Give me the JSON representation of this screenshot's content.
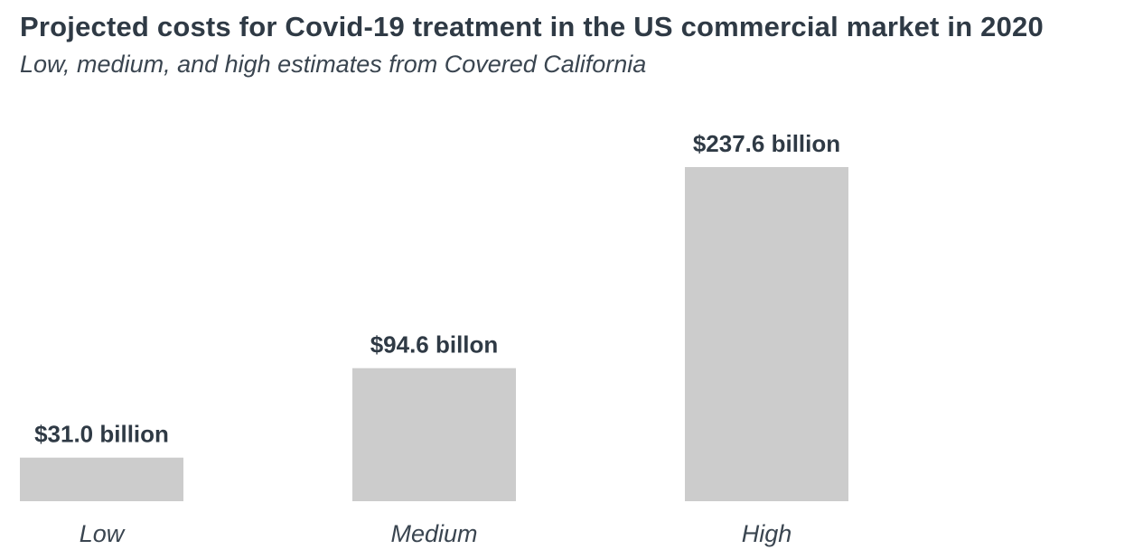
{
  "title": "Projected costs for Covid-19 treatment in the US commercial market in 2020",
  "subtitle": "Low, medium, and high estimates from Covered California",
  "chart_data": {
    "type": "bar",
    "title": "Projected costs for Covid-19 treatment in the US commercial market in 2020",
    "subtitle": "Low, medium, and high estimates from Covered California",
    "categories": [
      "Low",
      "Medium",
      "High"
    ],
    "values": [
      31.0,
      94.6,
      237.6
    ],
    "data_labels": [
      "$31.0 billion",
      "$94.6 billon",
      "$237.6 billion"
    ],
    "unit": "billion USD",
    "xlabel": "",
    "ylabel": "",
    "ylim": [
      0,
      237.6
    ],
    "grid": false,
    "legend": "none",
    "bar_color": "#cccccc",
    "text_color": "#2f3a45"
  }
}
